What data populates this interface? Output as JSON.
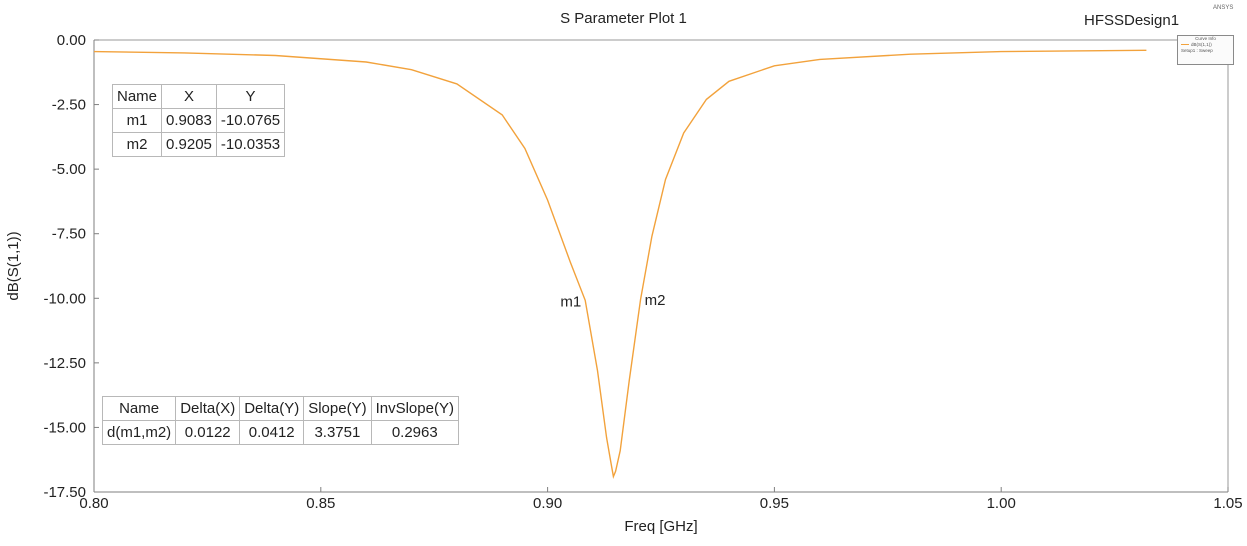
{
  "header": {
    "design_name": "HFSSDesign1",
    "logo": "ANSYS"
  },
  "legend": {
    "title": "Curve Info",
    "series_label": "dB(S(1,1))",
    "setup_label": "Setup1 : Sweep"
  },
  "marker_table": {
    "headers": [
      "Name",
      "X",
      "Y"
    ],
    "rows": [
      [
        "m1",
        "0.9083",
        "-10.0765"
      ],
      [
        "m2",
        "0.9205",
        "-10.0353"
      ]
    ]
  },
  "delta_table": {
    "headers": [
      "Name",
      "Delta(X)",
      "Delta(Y)",
      "Slope(Y)",
      "InvSlope(Y)"
    ],
    "rows": [
      [
        "d(m1,m2)",
        "0.0122",
        "0.0412",
        "3.3751",
        "0.2963"
      ]
    ]
  },
  "chart_data": {
    "type": "line",
    "title": "S Parameter Plot 1",
    "xlabel": "Freq [GHz]",
    "ylabel": "dB(S(1,1))",
    "xlim": [
      0.8,
      1.05
    ],
    "ylim": [
      -17.5,
      0.0
    ],
    "x_ticks": [
      "0.80",
      "0.85",
      "0.90",
      "0.95",
      "1.00",
      "1.05"
    ],
    "y_ticks": [
      "0.00",
      "-2.50",
      "-5.00",
      "-7.50",
      "-10.00",
      "-12.50",
      "-15.00",
      "-17.50"
    ],
    "grid": false,
    "legend_position": "top-right",
    "colors": {
      "series": "#f2a23c",
      "axis": "#7f7f7f"
    },
    "series": [
      {
        "name": "dB(S(1,1))",
        "x": [
          0.8,
          0.82,
          0.84,
          0.86,
          0.87,
          0.88,
          0.89,
          0.895,
          0.9,
          0.905,
          0.9083,
          0.911,
          0.913,
          0.914,
          0.9145,
          0.915,
          0.916,
          0.918,
          0.9205,
          0.923,
          0.926,
          0.93,
          0.935,
          0.94,
          0.95,
          0.96,
          0.98,
          1.0,
          1.032
        ],
        "y": [
          -0.45,
          -0.5,
          -0.6,
          -0.85,
          -1.15,
          -1.7,
          -2.9,
          -4.2,
          -6.2,
          -8.6,
          -10.0765,
          -12.8,
          -15.4,
          -16.4,
          -16.9,
          -16.7,
          -15.9,
          -13.2,
          -10.0353,
          -7.6,
          -5.4,
          -3.6,
          -2.3,
          -1.6,
          -1.0,
          -0.75,
          -0.55,
          -0.45,
          -0.4
        ]
      }
    ],
    "markers": [
      {
        "name": "m1",
        "x": 0.9083,
        "y": -10.0765
      },
      {
        "name": "m2",
        "x": 0.9205,
        "y": -10.0353
      }
    ]
  }
}
